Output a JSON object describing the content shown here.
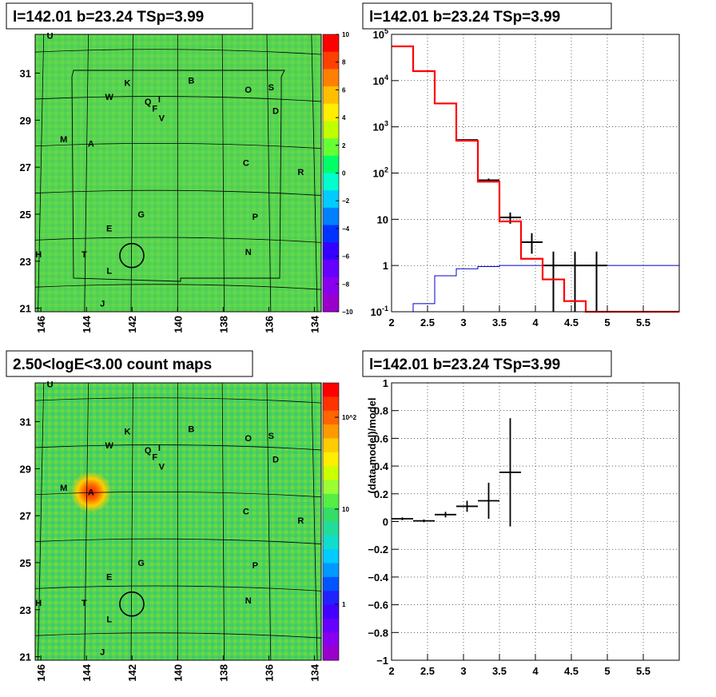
{
  "titles": {
    "top_left": "l=142.01 b=23.24 TSp=3.99",
    "top_right": "l=142.01 b=23.24 TSp=3.99",
    "bottom_left": "2.50<logE<3.00 count maps",
    "bottom_right": "l=142.01 b=23.24 TSp=3.99"
  },
  "colors": {
    "map_bg": "#55d255",
    "data": "#000000",
    "model": "#ff0000",
    "bkg": "#0000cc",
    "grid": "#000000"
  },
  "chart_data": [
    {
      "type": "heatmap",
      "name": "residual-map",
      "x_ticks": [
        "146",
        "144",
        "142",
        "140",
        "138",
        "136",
        "134"
      ],
      "y_ticks": [
        "31",
        "29",
        "27",
        "25",
        "23",
        "21"
      ],
      "colorbar": {
        "min": -10,
        "max": 10,
        "labels": [
          "10",
          "8",
          "6",
          "4",
          "2",
          "0",
          "−2",
          "−4",
          "−6",
          "−8",
          "−10"
        ]
      },
      "sources": [
        {
          "label": "U",
          "l": 145.6,
          "b": 32.6
        },
        {
          "label": "K",
          "l": 142.2,
          "b": 30.6
        },
        {
          "label": "B",
          "l": 139.4,
          "b": 30.7
        },
        {
          "label": "O",
          "l": 136.9,
          "b": 30.3
        },
        {
          "label": "S",
          "l": 135.9,
          "b": 30.4
        },
        {
          "label": "W",
          "l": 143.0,
          "b": 30.0
        },
        {
          "label": "Q",
          "l": 141.3,
          "b": 29.8
        },
        {
          "label": "I",
          "l": 140.8,
          "b": 29.9
        },
        {
          "label": "F",
          "l": 141.0,
          "b": 29.5
        },
        {
          "label": "D",
          "l": 135.7,
          "b": 29.4
        },
        {
          "label": "V",
          "l": 140.7,
          "b": 29.1
        },
        {
          "label": "M",
          "l": 145.0,
          "b": 28.2
        },
        {
          "label": "A",
          "l": 143.8,
          "b": 28.0
        },
        {
          "label": "C",
          "l": 137.0,
          "b": 27.2
        },
        {
          "label": "R",
          "l": 134.6,
          "b": 26.8
        },
        {
          "label": "G",
          "l": 141.6,
          "b": 25.0
        },
        {
          "label": "P",
          "l": 136.6,
          "b": 24.9
        },
        {
          "label": "E",
          "l": 143.0,
          "b": 24.4
        },
        {
          "label": "N",
          "l": 136.9,
          "b": 23.4
        },
        {
          "label": "H",
          "l": 146.1,
          "b": 23.3
        },
        {
          "label": "T",
          "l": 144.1,
          "b": 23.3
        },
        {
          "label": "L",
          "l": 143.0,
          "b": 22.6
        },
        {
          "label": "J",
          "l": 143.3,
          "b": 21.2
        }
      ],
      "roi": {
        "l": 142.01,
        "b": 23.24
      }
    },
    {
      "type": "line",
      "name": "spectrum",
      "yscale": "log",
      "xlim": [
        2,
        6
      ],
      "ylim": [
        0.1,
        100000
      ],
      "x_ticks": [
        "2",
        "2.5",
        "3",
        "3.5",
        "4",
        "4.5",
        "5",
        "5.5"
      ],
      "y_ticks": [
        "10^5",
        "10^4",
        "10^3",
        "10^2",
        "10",
        "1",
        "10^-1"
      ],
      "bin_edges": [
        2.0,
        2.3,
        2.6,
        2.9,
        3.2,
        3.5,
        3.8,
        4.1,
        4.4,
        4.7,
        5.0
      ],
      "series": [
        {
          "role": "model",
          "values": [
            55000,
            16000,
            3200,
            500,
            65,
            9,
            1.4,
            0.5,
            0.17,
            0.1,
            0.1
          ]
        },
        {
          "role": "bkg",
          "values": [
            0.1,
            0.15,
            0.6,
            0.85,
            0.95,
            1.0,
            1.0,
            1.0,
            1.0,
            1.0,
            1.0
          ]
        }
      ],
      "data_points": [
        {
          "x": 3.05,
          "y": 520,
          "xerr": 0.15,
          "ylo": 510,
          "yhi": 530
        },
        {
          "x": 3.35,
          "y": 70,
          "xerr": 0.15,
          "ylo": 64,
          "yhi": 76
        },
        {
          "x": 3.65,
          "y": 11,
          "xerr": 0.15,
          "ylo": 8,
          "yhi": 14
        },
        {
          "x": 3.95,
          "y": 3.2,
          "xerr": 0.15,
          "ylo": 1.8,
          "yhi": 5
        },
        {
          "x": 4.25,
          "y": 1,
          "xerr": 0.15,
          "ylo": 0.1,
          "yhi": 2
        },
        {
          "x": 4.55,
          "y": 1,
          "xerr": 0.15,
          "ylo": 0.1,
          "yhi": 2
        },
        {
          "x": 4.85,
          "y": 1,
          "xerr": 0.15,
          "ylo": 0.1,
          "yhi": 2
        }
      ]
    },
    {
      "type": "heatmap",
      "name": "count-map",
      "x_ticks": [
        "146",
        "144",
        "142",
        "140",
        "138",
        "136",
        "134"
      ],
      "y_ticks": [
        "31",
        "29",
        "27",
        "25",
        "23",
        "21"
      ],
      "colorbar": {
        "scale": "log",
        "labels": [
          "10^2",
          "10",
          "1"
        ]
      },
      "hotspot": {
        "label": "A",
        "l": 143.8,
        "b": 28.0
      }
    },
    {
      "type": "scatter",
      "name": "residual-ratio",
      "ylabel": "(data-model)/model",
      "xlim": [
        2,
        6
      ],
      "ylim": [
        -1,
        1
      ],
      "x_ticks": [
        "2",
        "2.5",
        "3",
        "3.5",
        "4",
        "4.5",
        "5",
        "5.5"
      ],
      "y_ticks": [
        "1",
        "0.8",
        "0.6",
        "0.4",
        "0.2",
        "0",
        "−0.2",
        "−0.4",
        "−0.6",
        "−0.8",
        "−1"
      ],
      "points": [
        {
          "x": 2.15,
          "y": 0.02,
          "xerr": 0.15,
          "yerr": 0.01
        },
        {
          "x": 2.45,
          "y": 0.005,
          "xerr": 0.15,
          "yerr": 0.01
        },
        {
          "x": 2.75,
          "y": 0.05,
          "xerr": 0.15,
          "yerr": 0.02
        },
        {
          "x": 3.05,
          "y": 0.11,
          "xerr": 0.15,
          "yerr": 0.04
        },
        {
          "x": 3.35,
          "y": 0.15,
          "xerr": 0.15,
          "yerr": 0.13
        },
        {
          "x": 3.65,
          "y": 0.355,
          "xerr": 0.15,
          "yerr": 0.39
        }
      ]
    }
  ]
}
